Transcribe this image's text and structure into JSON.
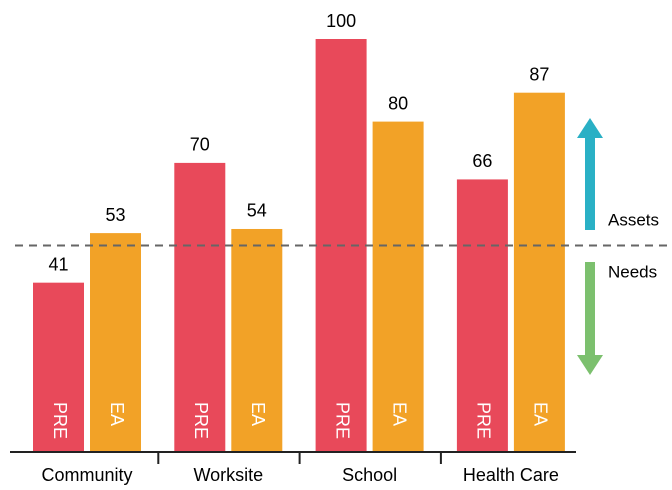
{
  "chart_data": {
    "type": "bar",
    "categories": [
      "Community",
      "Worksite",
      "School",
      "Health Care"
    ],
    "series": [
      {
        "name": "PRE",
        "color": "#e8495a",
        "values": [
          41,
          70,
          100,
          66
        ]
      },
      {
        "name": "EA",
        "color": "#f2a227",
        "values": [
          53,
          54,
          80,
          87
        ]
      }
    ],
    "ylim": [
      0,
      100
    ],
    "threshold": 50,
    "annotations": [
      "Assets",
      "Needs"
    ]
  }
}
